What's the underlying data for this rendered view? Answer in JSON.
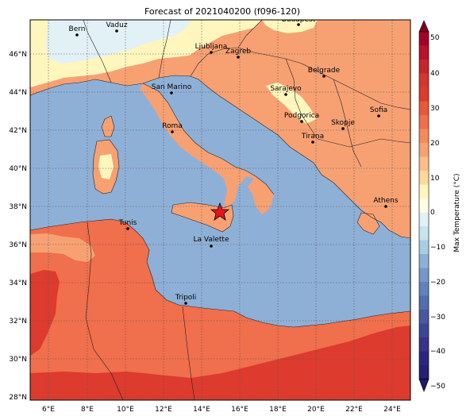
{
  "title": "Forecast of 2021040200 (f096-120)",
  "colorbar": {
    "label": "Max Temperature (°C)",
    "ticks": [
      "50",
      "40",
      "30",
      "20",
      "10",
      "0",
      "−10",
      "−20",
      "−30",
      "−40",
      "−50"
    ]
  },
  "axes": {
    "lon_ticks": [
      "6°E",
      "8°E",
      "10°E",
      "12°E",
      "14°E",
      "16°E",
      "18°E",
      "20°E",
      "22°E",
      "24°E"
    ],
    "lat_ticks": [
      "46°N",
      "44°N",
      "42°N",
      "40°N",
      "38°N",
      "36°N",
      "34°N",
      "32°N",
      "30°N",
      "28°N"
    ]
  },
  "cities": [
    {
      "name": "Bern"
    },
    {
      "name": "Vaduz"
    },
    {
      "name": "Budapest"
    },
    {
      "name": "Ljubljana"
    },
    {
      "name": "Zagreb"
    },
    {
      "name": "San Marino"
    },
    {
      "name": "Belgrade"
    },
    {
      "name": "Sarajevo"
    },
    {
      "name": "Sofia"
    },
    {
      "name": "Podgorica"
    },
    {
      "name": "Skopje"
    },
    {
      "name": "Roma"
    },
    {
      "name": "Tirana"
    },
    {
      "name": "Athens"
    },
    {
      "name": "Tunis"
    },
    {
      "name": "La Valette"
    },
    {
      "name": "Tripoli"
    }
  ],
  "colors": {
    "sea": "#8fb0d6",
    "land_warm": "#f7a173",
    "land_hot": "#f06f4c",
    "land_veryhot": "#dc3b2e",
    "cool": "#fef6bd",
    "cold": "#e2f1f6",
    "marker": "#e8141c"
  }
}
